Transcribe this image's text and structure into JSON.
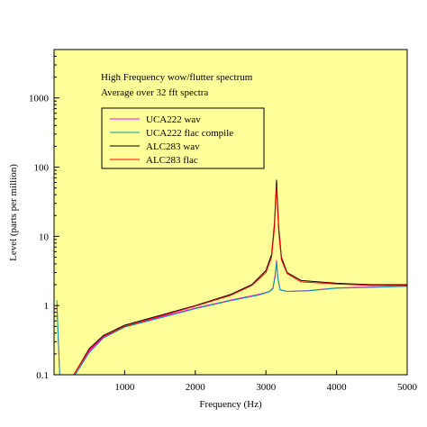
{
  "chart_data": {
    "type": "line",
    "annotation_lines": [
      "High Frequency wow/flutter spectrum",
      "Average over 32 fft spectra"
    ],
    "xlabel": "Frequency (Hz)",
    "ylabel": "Level (parts per million)",
    "xlim": [
      0,
      5000
    ],
    "ylim": [
      0.1,
      5000
    ],
    "yscale": "log",
    "x_ticks": [
      1000,
      2000,
      3000,
      4000,
      5000
    ],
    "x_tick_labels": [
      "1000",
      "2000",
      "3000",
      "4000",
      "5000"
    ],
    "y_ticks": [
      0.1,
      1,
      10,
      100,
      1000
    ],
    "y_tick_labels": [
      "0.1",
      "1",
      "10",
      "100",
      "1000"
    ],
    "legend_position": "upper-left",
    "plot_background": "#ffff99",
    "series": [
      {
        "name": "UCA222 wav",
        "color": "#ff00ff",
        "x": [
          40,
          80,
          300,
          500,
          700,
          1000,
          1500,
          2000,
          2500,
          2900,
          3050,
          3100,
          3130,
          3150,
          3170,
          3200,
          3300,
          3600,
          4000,
          4500,
          5000
        ],
        "y": [
          1.0,
          0.1,
          0.1,
          0.22,
          0.35,
          0.5,
          0.68,
          0.92,
          1.2,
          1.45,
          1.6,
          1.8,
          2.8,
          4.5,
          2.5,
          1.7,
          1.6,
          1.65,
          1.8,
          1.85,
          1.9
        ]
      },
      {
        "name": "UCA222 flac compile",
        "color": "#00a0a0",
        "x": [
          40,
          80,
          300,
          500,
          700,
          1000,
          1500,
          2000,
          2500,
          2900,
          3050,
          3100,
          3130,
          3150,
          3170,
          3200,
          3300,
          3600,
          4000,
          4500,
          5000
        ],
        "y": [
          1.2,
          0.1,
          0.1,
          0.21,
          0.34,
          0.49,
          0.66,
          0.9,
          1.18,
          1.42,
          1.58,
          1.75,
          2.6,
          4.2,
          2.4,
          1.68,
          1.6,
          1.63,
          1.78,
          1.83,
          1.9
        ]
      },
      {
        "name": "ALC283 wav",
        "color": "#000000",
        "x": [
          280,
          500,
          700,
          1000,
          1500,
          2000,
          2500,
          2800,
          3000,
          3080,
          3120,
          3150,
          3180,
          3220,
          3300,
          3500,
          4000,
          4500,
          5000
        ],
        "y": [
          0.1,
          0.24,
          0.37,
          0.52,
          0.72,
          1.0,
          1.45,
          2.0,
          3.2,
          5.5,
          15,
          65,
          14,
          5.0,
          3.0,
          2.3,
          2.1,
          2.0,
          2.0
        ]
      },
      {
        "name": "ALC283 flac",
        "color": "#ff0000",
        "x": [
          280,
          500,
          700,
          1000,
          1500,
          2000,
          2500,
          2800,
          3000,
          3080,
          3120,
          3150,
          3180,
          3220,
          3300,
          3500,
          4000,
          4500,
          5000
        ],
        "y": [
          0.1,
          0.23,
          0.36,
          0.5,
          0.7,
          0.98,
          1.4,
          1.95,
          3.0,
          5.0,
          13,
          52,
          12,
          4.6,
          2.9,
          2.2,
          2.05,
          1.95,
          1.95
        ]
      }
    ]
  }
}
